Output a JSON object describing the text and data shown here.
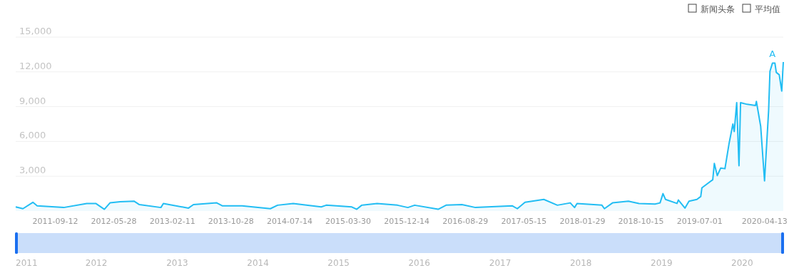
{
  "chart_data": {
    "type": "area",
    "color": "#22bdf3",
    "x": [
      "2011-03-21",
      "2011-04-22",
      "2011-06-05",
      "2011-06-24",
      "2011-10-19",
      "2012-01-29",
      "2012-03-09",
      "2012-04-16",
      "2012-05-11",
      "2012-06-25",
      "2012-08-25",
      "2012-09-18",
      "2012-12-22",
      "2013-01-02",
      "2013-04-23",
      "2013-05-15",
      "2013-08-26",
      "2013-09-19",
      "2013-12-16",
      "2014-04-20",
      "2014-05-22",
      "2014-07-30",
      "2014-12-01",
      "2014-12-23",
      "2015-04-15",
      "2015-05-07",
      "2015-05-29",
      "2015-08-05",
      "2015-11-03",
      "2015-12-19",
      "2016-01-18",
      "2016-05-01",
      "2016-06-05",
      "2016-08-14",
      "2016-10-13",
      "2017-03-24",
      "2017-04-16",
      "2017-05-20",
      "2017-08-11",
      "2017-10-10",
      "2017-12-06",
      "2017-12-25",
      "2018-01-05",
      "2018-04-25",
      "2018-05-06",
      "2018-06-11",
      "2018-08-20",
      "2018-10-06",
      "2018-12-16",
      "2019-01-07",
      "2019-01-20",
      "2019-01-31",
      "2019-03-23",
      "2019-03-29",
      "2019-04-27",
      "2019-05-15",
      "2019-06-19",
      "2019-07-06",
      "2019-07-11",
      "2019-08-28",
      "2019-09-04",
      "2019-09-17",
      "2019-10-02",
      "2019-10-21",
      "2019-11-08",
      "2019-11-25",
      "2019-12-01",
      "2019-12-12",
      "2019-12-22",
      "2019-12-29",
      "2020-01-27",
      "2020-03-04",
      "2020-03-08",
      "2020-03-27",
      "2020-04-13",
      "2020-05-01",
      "2020-05-07",
      "2020-05-18",
      "2020-05-29",
      "2020-06-04",
      "2020-06-17",
      "2020-06-28",
      "2020-07-05"
    ],
    "values": [
      350,
      200,
      750,
      450,
      300,
      650,
      650,
      150,
      700,
      800,
      850,
      550,
      300,
      650,
      250,
      550,
      700,
      450,
      450,
      200,
      500,
      650,
      350,
      500,
      350,
      150,
      500,
      650,
      500,
      300,
      500,
      150,
      500,
      550,
      300,
      450,
      200,
      750,
      1000,
      500,
      700,
      300,
      650,
      500,
      200,
      700,
      850,
      650,
      600,
      700,
      1500,
      1000,
      650,
      950,
      250,
      850,
      1000,
      1250,
      2000,
      2700,
      4100,
      3050,
      3700,
      3650,
      5800,
      7500,
      6850,
      9350,
      3900,
      9350,
      9200,
      9100,
      9450,
      7300,
      2600,
      8650,
      12050,
      12750,
      12750,
      11950,
      11750,
      10350,
      12850
    ],
    "xlim": [
      "2011-03-21",
      "2020-07-05"
    ],
    "xticks": [
      "2011-09-12",
      "2012-05-28",
      "2013-02-11",
      "2013-10-28",
      "2014-07-14",
      "2015-03-30",
      "2015-12-14",
      "2016-08-29",
      "2017-05-15",
      "2018-01-29",
      "2018-10-15",
      "2019-07-01",
      "2020-04-13"
    ],
    "ylim": [
      0,
      15000
    ],
    "yticks": [
      {
        "value": 3000,
        "label": "3,000"
      },
      {
        "value": 6000,
        "label": "6,000"
      },
      {
        "value": 9000,
        "label": "9,000"
      },
      {
        "value": 12000,
        "label": "12,000"
      },
      {
        "value": 15000,
        "label": "15,000"
      }
    ],
    "x2lim": [
      "2011-01-01",
      "2020-07-05"
    ],
    "x2ticks": [
      {
        "value": "2011-01-01",
        "label": "2011"
      },
      {
        "value": "2012-01-01",
        "label": "2012"
      },
      {
        "value": "2013-01-01",
        "label": "2013"
      },
      {
        "value": "2014-01-01",
        "label": "2014"
      },
      {
        "value": "2015-01-01",
        "label": "2015"
      },
      {
        "value": "2016-01-01",
        "label": "2016"
      },
      {
        "value": "2017-01-01",
        "label": "2017"
      },
      {
        "value": "2018-01-01",
        "label": "2018"
      },
      {
        "value": "2019-01-01",
        "label": "2019"
      },
      {
        "value": "2020-01-01",
        "label": "2020"
      }
    ],
    "grid": "y",
    "annotations": [
      {
        "text": "A",
        "x": "2020-05-18",
        "y": 12760
      },
      "新闻头条",
      "平均值"
    ]
  }
}
